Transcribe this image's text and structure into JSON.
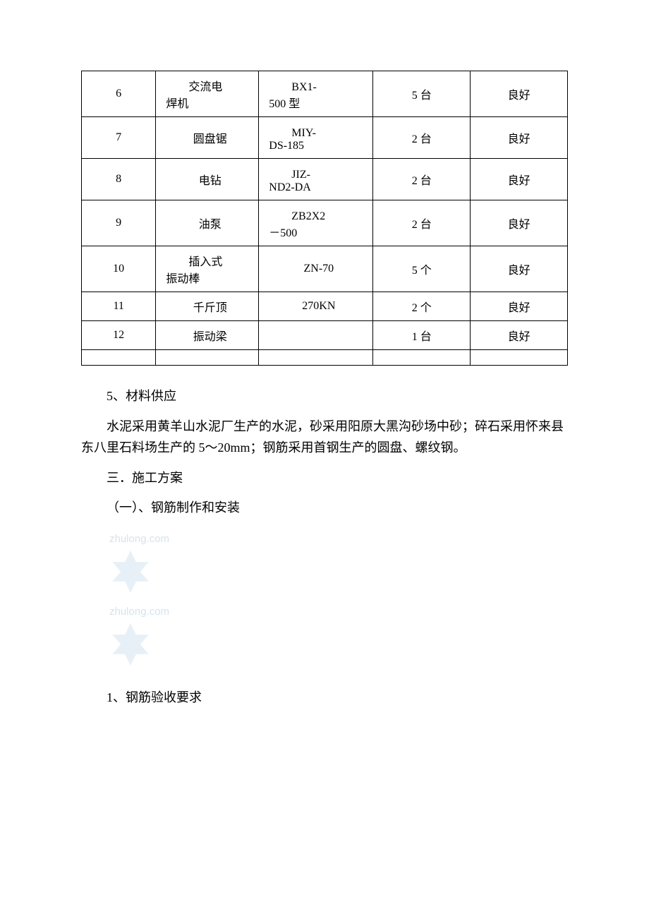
{
  "table": {
    "rows": [
      {
        "num": "6",
        "name": "交流电焊机",
        "name_indent": true,
        "model": "BX1-500 型",
        "model_indent": true,
        "qty": "5 台",
        "status": "良好"
      },
      {
        "num": "7",
        "name": "圆盘锯",
        "name_indent": false,
        "model": "MIY-DS-185",
        "model_indent": true,
        "qty": "2 台",
        "status": "良好"
      },
      {
        "num": "8",
        "name": "电钻",
        "name_indent": false,
        "model": "JIZ-ND2-DA",
        "model_indent": true,
        "qty": "2 台",
        "status": "良好"
      },
      {
        "num": "9",
        "name": "油泵",
        "name_indent": false,
        "model": "ZB2X2－500",
        "model_indent": true,
        "qty": "2 台",
        "status": "良好"
      },
      {
        "num": "10",
        "name": "插入式振动棒",
        "name_indent": true,
        "model": "ZN-70",
        "model_indent": false,
        "qty": "5 个",
        "status": "良好"
      },
      {
        "num": "11",
        "name": "千斤顶",
        "name_indent": false,
        "model": "270KN",
        "model_indent": false,
        "qty": "2 个",
        "status": "良好"
      },
      {
        "num": "12",
        "name": "振动梁",
        "name_indent": false,
        "model": "",
        "model_indent": false,
        "qty": "1 台",
        "status": "良好"
      },
      {
        "num": "",
        "name": "",
        "name_indent": false,
        "model": "",
        "model_indent": false,
        "qty": "",
        "status": ""
      }
    ],
    "border_color": "#000000",
    "font_size": 16
  },
  "paragraphs": {
    "p1": "5、材料供应",
    "p2": "水泥采用黄羊山水泥厂生产的水泥，砂采用阳原大黑沟砂场中砂；碎石采用怀来县东八里石料场生产的 5～20mm；钢筋采用首钢生产的圆盘、螺纹钢。",
    "p3": "三．施工方案",
    "p4": "（一）、钢筋制作和安装",
    "p5": "1、钢筋验收要求"
  },
  "watermark": {
    "text": "zhulong.com",
    "color": "#d4e3ee"
  },
  "styling": {
    "background_color": "#ffffff",
    "text_color": "#000000",
    "body_font_size": 18,
    "font_family": "SimSun"
  }
}
